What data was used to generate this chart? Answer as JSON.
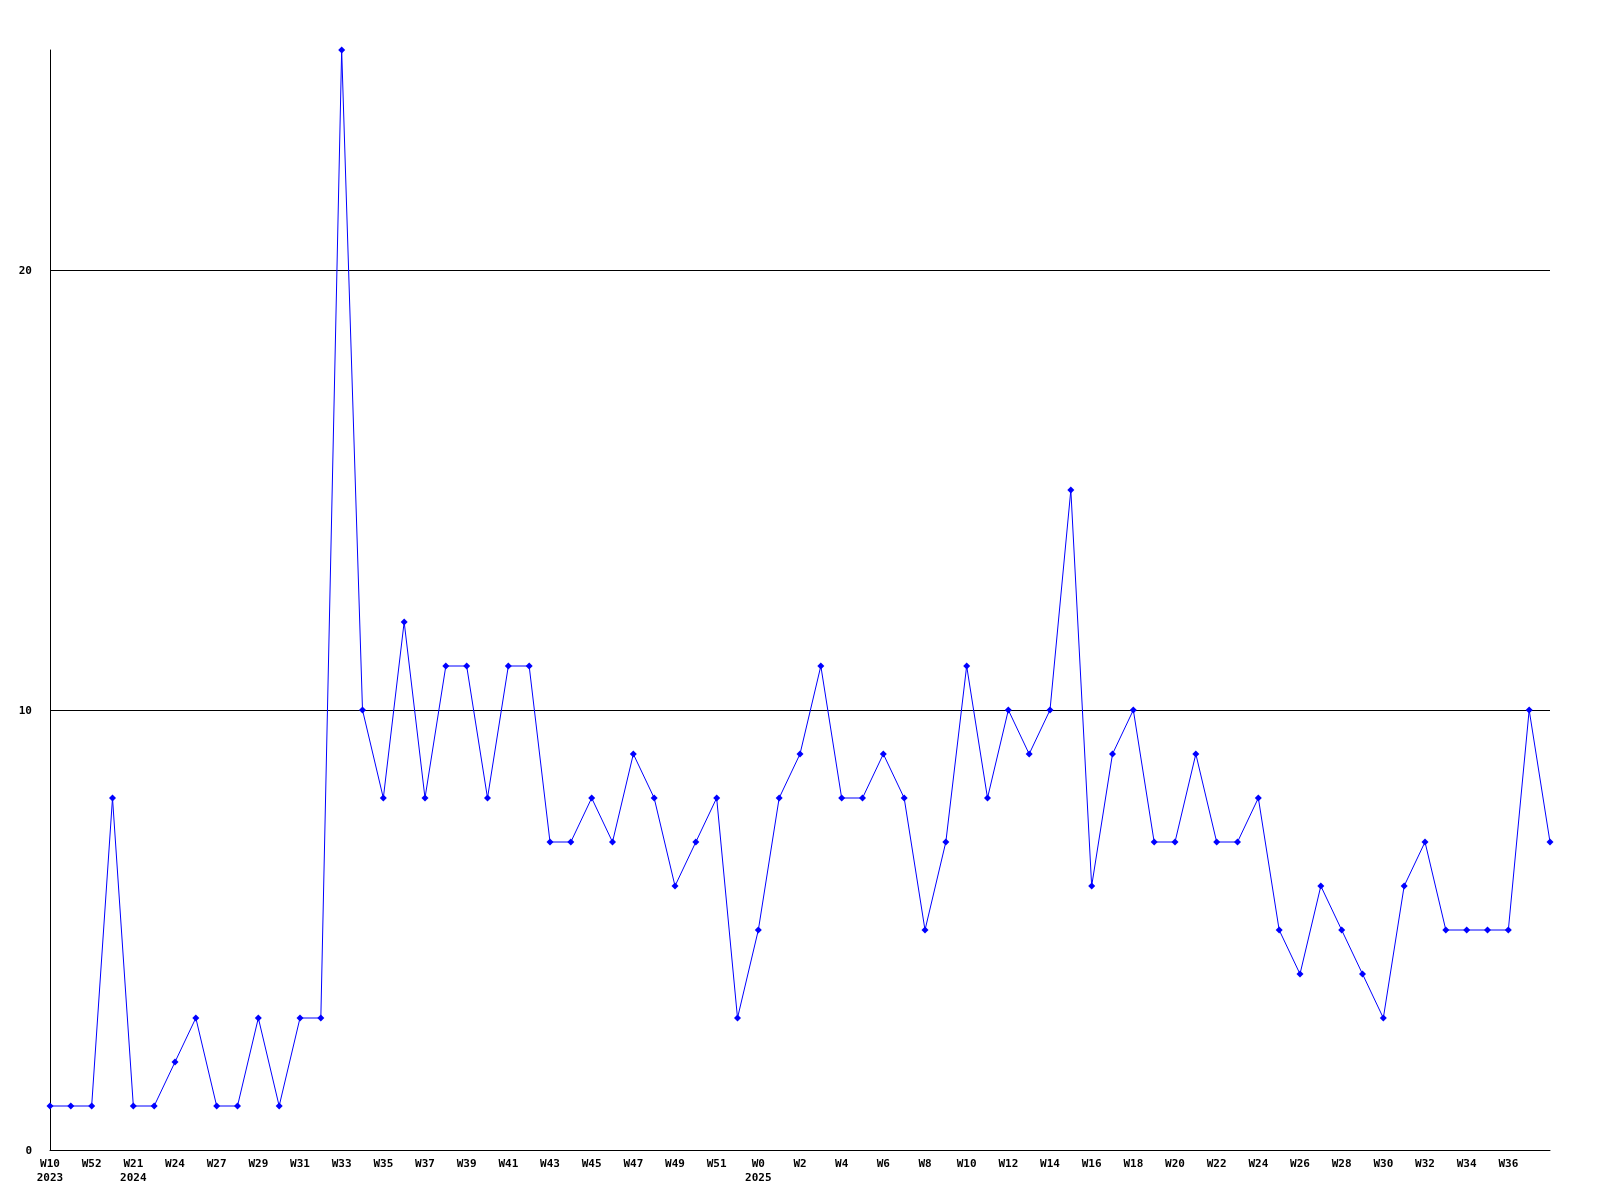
{
  "chart_data": {
    "type": "line",
    "categories": [
      "W10\n2023",
      null,
      "W52",
      null,
      "W21\n2024",
      null,
      "W24",
      null,
      "W27",
      null,
      "W29",
      null,
      "W31",
      null,
      "W33",
      null,
      "W35",
      null,
      "W37",
      null,
      "W39",
      null,
      "W41",
      null,
      "W43",
      null,
      "W45",
      null,
      "W47",
      null,
      "W49",
      null,
      "W51",
      null,
      "W0\n2025",
      null,
      "W2",
      null,
      "W4",
      null,
      "W6",
      null,
      "W8",
      null,
      "W10",
      null,
      "W12",
      null,
      "W14",
      null,
      "W16",
      null,
      "W18",
      null,
      "W20",
      null,
      "W22",
      null,
      "W24",
      null,
      "W26",
      null,
      "W28",
      null,
      "W30",
      null,
      "W32",
      null,
      "W34",
      null,
      "W36",
      null,
      null
    ],
    "series": [
      {
        "color": "#0000ff",
        "values": [
          1,
          1,
          1,
          8,
          1,
          1,
          2,
          3,
          1,
          1,
          3,
          1,
          3,
          3,
          25,
          10,
          8,
          12,
          8,
          11,
          11,
          8,
          11,
          11,
          7,
          7,
          8,
          7,
          9,
          8,
          6,
          7,
          8,
          3,
          5,
          8,
          9,
          11,
          8,
          8,
          9,
          8,
          5,
          7,
          11,
          8,
          10,
          9,
          10,
          15,
          6,
          9,
          10,
          7,
          7,
          9,
          7,
          7,
          8,
          5,
          4,
          6,
          5,
          4,
          3,
          6,
          7,
          5,
          5,
          5,
          5,
          10,
          7
        ]
      }
    ],
    "ylim": [
      0,
      25
    ],
    "yticks": [
      0,
      10,
      20
    ],
    "grid": "y",
    "marker": "diamond",
    "line_style": "solid"
  }
}
